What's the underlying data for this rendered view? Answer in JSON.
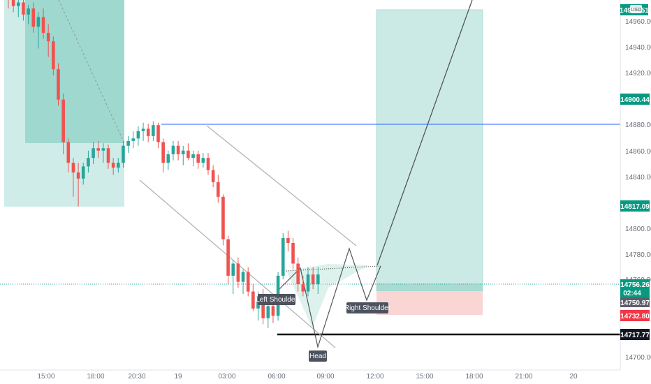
{
  "chart_data": {
    "type": "candlestick",
    "title": "",
    "currency_badge": "USD",
    "x_ticks": [
      "15:00",
      "18:00",
      "20:30",
      "19",
      "03:00",
      "06:00",
      "09:00",
      "12:00",
      "15:00",
      "18:00",
      "21:00",
      "20"
    ],
    "y_ticks": [
      "14960.00",
      "14940.00",
      "14920.00",
      "14880.00",
      "14860.00",
      "14840.00",
      "14800.00",
      "14780.00",
      "14760.00",
      "14700.00"
    ],
    "y_range": [
      14690,
      14982
    ],
    "price_labels": {
      "top": "14980.51",
      "target": "14900.44",
      "mid": "14817.09",
      "last": "14756.26",
      "countdown": "02:44",
      "entry": "14750.97",
      "stop": "14732.80",
      "support": "14717.77"
    },
    "resistance_line": 14880,
    "support_line": 14717.77,
    "neckline": [
      14752,
      14760
    ],
    "pattern_labels": [
      "Left Shoulder",
      "Head",
      "Right Shoulder"
    ],
    "candles": [
      [
        14985,
        14990,
        14975,
        14982
      ],
      [
        14982,
        14987,
        14972,
        14977
      ],
      [
        14977,
        14983,
        14968,
        14980
      ],
      [
        14980,
        14985,
        14965,
        14970
      ],
      [
        14970,
        14978,
        14962,
        14975
      ],
      [
        14975,
        14980,
        14955,
        14960
      ],
      [
        14960,
        14972,
        14942,
        14968
      ],
      [
        14968,
        14975,
        14950,
        14955
      ],
      [
        14955,
        14962,
        14935,
        14948
      ],
      [
        14948,
        14952,
        14920,
        14925
      ],
      [
        14925,
        14930,
        14895,
        14900
      ],
      [
        14900,
        14905,
        14855,
        14865
      ],
      [
        14865,
        14868,
        14840,
        14848
      ],
      [
        14848,
        14852,
        14820,
        14840
      ],
      [
        14840,
        14848,
        14812,
        14835
      ],
      [
        14835,
        14848,
        14830,
        14845
      ],
      [
        14845,
        14858,
        14840,
        14852
      ],
      [
        14852,
        14865,
        14847,
        14860
      ],
      [
        14860,
        14866,
        14852,
        14858
      ],
      [
        14858,
        14864,
        14848,
        14860
      ],
      [
        14860,
        14863,
        14843,
        14848
      ],
      [
        14848,
        14852,
        14838,
        14844
      ],
      [
        14844,
        14852,
        14840,
        14848
      ],
      [
        14848,
        14866,
        14844,
        14862
      ],
      [
        14862,
        14870,
        14856,
        14866
      ],
      [
        14866,
        14874,
        14860,
        14868
      ],
      [
        14868,
        14878,
        14862,
        14874
      ],
      [
        14874,
        14881,
        14866,
        14876
      ],
      [
        14876,
        14880,
        14865,
        14870
      ],
      [
        14870,
        14882,
        14866,
        14879
      ],
      [
        14879,
        14881,
        14860,
        14865
      ],
      [
        14865,
        14868,
        14840,
        14848
      ],
      [
        14848,
        14858,
        14842,
        14855
      ],
      [
        14855,
        14866,
        14850,
        14862
      ],
      [
        14862,
        14866,
        14850,
        14855
      ],
      [
        14855,
        14862,
        14846,
        14858
      ],
      [
        14858,
        14864,
        14850,
        14852
      ],
      [
        14852,
        14858,
        14845,
        14855
      ],
      [
        14855,
        14858,
        14843,
        14848
      ],
      [
        14848,
        14856,
        14844,
        14852
      ],
      [
        14852,
        14856,
        14838,
        14842
      ],
      [
        14842,
        14846,
        14828,
        14832
      ],
      [
        14832,
        14838,
        14815,
        14820
      ],
      [
        14820,
        14822,
        14780,
        14785
      ],
      [
        14785,
        14788,
        14748,
        14755
      ],
      [
        14755,
        14768,
        14740,
        14765
      ],
      [
        14765,
        14770,
        14745,
        14750
      ],
      [
        14750,
        14760,
        14740,
        14758
      ],
      [
        14758,
        14762,
        14738,
        14742
      ],
      [
        14742,
        14748,
        14726,
        14728
      ],
      [
        14728,
        14742,
        14718,
        14738
      ],
      [
        14738,
        14744,
        14715,
        14720
      ],
      [
        14720,
        14735,
        14712,
        14730
      ],
      [
        14730,
        14740,
        14716,
        14722
      ],
      [
        14722,
        14758,
        14718,
        14755
      ],
      [
        14755,
        14790,
        14752,
        14786
      ],
      [
        14786,
        14792,
        14775,
        14782
      ],
      [
        14782,
        14786,
        14760,
        14765
      ],
      [
        14765,
        14770,
        14742,
        14748
      ],
      [
        14748,
        14755,
        14738,
        14742
      ],
      [
        14742,
        14762,
        14738,
        14756
      ],
      [
        14756,
        14762,
        14744,
        14748
      ],
      [
        14748,
        14762,
        14740,
        14756
      ]
    ],
    "annotations": [
      "trend channel",
      "long position box",
      "short position box",
      "projection line"
    ]
  }
}
